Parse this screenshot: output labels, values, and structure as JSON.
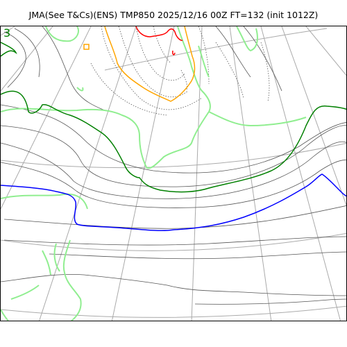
{
  "title": "JMA(See T&Cs)(ENS) TMP850 2025/12/16 00Z FT=132 (init 1012Z)",
  "map": {
    "variable": "TMP850",
    "model": "JMA ENS",
    "valid": "2025/12/16 00Z",
    "forecast_hour": "FT=132",
    "init": "1012Z",
    "contour_label": "3",
    "colors": {
      "graticule": "#aaaaaa",
      "coastline": "#90ee90",
      "isotherm": "#555555",
      "isotherm_dashed": "#555555",
      "green_contour": "#008000",
      "blue_contour": "#0000ff",
      "orange_contour": "#ffa500",
      "red_contour": "#ff0000"
    }
  }
}
